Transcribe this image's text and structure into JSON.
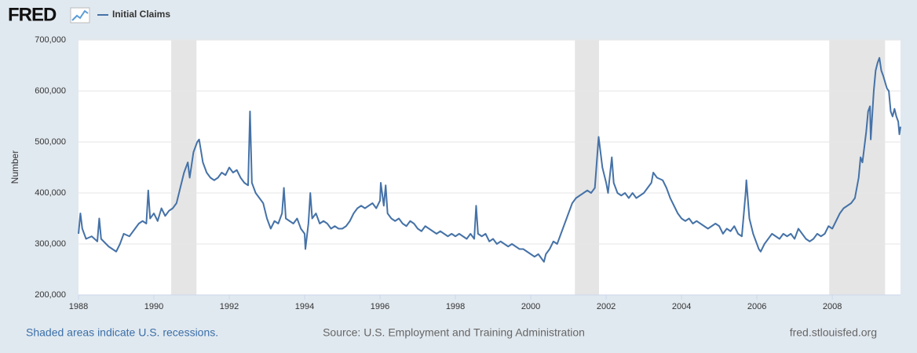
{
  "logo": "FRED",
  "footer": {
    "note": "Shaded areas indicate U.S. recessions.",
    "source": "Source: U.S. Employment and Training Administration",
    "site": "fred.stlouisfed.org"
  },
  "chart_data": {
    "type": "line",
    "ylabel": "Number",
    "xlim": [
      1988,
      2009.81
    ],
    "xticks": [
      1988,
      1990,
      1992,
      1994,
      1996,
      1998,
      2000,
      2002,
      2004,
      2006,
      2008
    ],
    "ylim": [
      200000,
      700000
    ],
    "yticks": [
      {
        "value": 200000,
        "label": "200,000"
      },
      {
        "value": 300000,
        "label": "300,000"
      },
      {
        "value": 400000,
        "label": "400,000"
      },
      {
        "value": 500000,
        "label": "500,000"
      },
      {
        "value": 600000,
        "label": "600,000"
      },
      {
        "value": 700000,
        "label": "700,000"
      }
    ],
    "grid": true,
    "legend": "top-left",
    "recession_color": "#e5e5e5",
    "recessions": [
      [
        1990.46,
        1991.13
      ],
      [
        2001.17,
        2001.81
      ],
      [
        2007.92,
        2009.4
      ]
    ],
    "series": [
      {
        "name": "Initial Claims",
        "color": "#4572a7",
        "x": [
          1988.0,
          1988.05,
          1988.1,
          1988.2,
          1988.35,
          1988.5,
          1988.55,
          1988.6,
          1988.8,
          1988.9,
          1989.0,
          1989.1,
          1989.2,
          1989.35,
          1989.5,
          1989.6,
          1989.7,
          1989.8,
          1989.85,
          1989.9,
          1990.0,
          1990.1,
          1990.2,
          1990.3,
          1990.4,
          1990.5,
          1990.6,
          1990.7,
          1990.8,
          1990.9,
          1990.95,
          1991.05,
          1991.15,
          1991.2,
          1991.3,
          1991.4,
          1991.5,
          1991.6,
          1991.7,
          1991.8,
          1991.9,
          1992.0,
          1992.1,
          1992.2,
          1992.3,
          1992.4,
          1992.5,
          1992.55,
          1992.6,
          1992.7,
          1992.8,
          1992.9,
          1993.0,
          1993.1,
          1993.2,
          1993.3,
          1993.4,
          1993.45,
          1993.5,
          1993.6,
          1993.7,
          1993.8,
          1993.9,
          1994.0,
          1994.02,
          1994.1,
          1994.15,
          1994.2,
          1994.3,
          1994.4,
          1994.5,
          1994.6,
          1994.7,
          1994.8,
          1994.9,
          1995.0,
          1995.1,
          1995.2,
          1995.3,
          1995.4,
          1995.5,
          1995.6,
          1995.7,
          1995.8,
          1995.9,
          1996.0,
          1996.02,
          1996.1,
          1996.15,
          1996.2,
          1996.3,
          1996.4,
          1996.5,
          1996.6,
          1996.7,
          1996.8,
          1996.9,
          1997.0,
          1997.1,
          1997.2,
          1997.3,
          1997.4,
          1997.5,
          1997.6,
          1997.7,
          1997.8,
          1997.9,
          1998.0,
          1998.1,
          1998.2,
          1998.3,
          1998.4,
          1998.5,
          1998.55,
          1998.6,
          1998.7,
          1998.8,
          1998.9,
          1999.0,
          1999.1,
          1999.2,
          1999.3,
          1999.4,
          1999.5,
          1999.6,
          1999.7,
          1999.8,
          1999.9,
          2000.0,
          2000.1,
          2000.2,
          2000.3,
          2000.35,
          2000.4,
          2000.5,
          2000.6,
          2000.7,
          2000.8,
          2000.9,
          2001.0,
          2001.1,
          2001.2,
          2001.3,
          2001.4,
          2001.5,
          2001.6,
          2001.7,
          2001.75,
          2001.8,
          2001.85,
          2001.9,
          2002.0,
          2002.05,
          2002.15,
          2002.2,
          2002.3,
          2002.4,
          2002.5,
          2002.6,
          2002.7,
          2002.8,
          2002.9,
          2003.0,
          2003.1,
          2003.2,
          2003.25,
          2003.35,
          2003.5,
          2003.6,
          2003.7,
          2003.8,
          2003.9,
          2004.0,
          2004.1,
          2004.2,
          2004.3,
          2004.4,
          2004.5,
          2004.6,
          2004.7,
          2004.8,
          2004.9,
          2005.0,
          2005.1,
          2005.2,
          2005.3,
          2005.4,
          2005.5,
          2005.6,
          2005.7,
          2005.72,
          2005.8,
          2005.9,
          2006.0,
          2006.05,
          2006.1,
          2006.2,
          2006.3,
          2006.4,
          2006.5,
          2006.6,
          2006.7,
          2006.8,
          2006.9,
          2007.0,
          2007.1,
          2007.2,
          2007.3,
          2007.4,
          2007.5,
          2007.6,
          2007.7,
          2007.8,
          2007.9,
          2008.0,
          2008.1,
          2008.2,
          2008.3,
          2008.4,
          2008.5,
          2008.6,
          2008.7,
          2008.75,
          2008.8,
          2008.9,
          2008.95,
          2009.0,
          2009.02,
          2009.1,
          2009.15,
          2009.2,
          2009.25,
          2009.3,
          2009.35,
          2009.45,
          2009.5,
          2009.55,
          2009.6,
          2009.65,
          2009.7,
          2009.75,
          2009.78,
          2009.81
        ],
        "values": [
          320000,
          360000,
          330000,
          310000,
          315000,
          305000,
          350000,
          310000,
          295000,
          290000,
          285000,
          300000,
          320000,
          315000,
          330000,
          340000,
          345000,
          340000,
          405000,
          350000,
          360000,
          345000,
          370000,
          355000,
          365000,
          370000,
          380000,
          410000,
          440000,
          460000,
          430000,
          480000,
          500000,
          505000,
          460000,
          440000,
          430000,
          425000,
          430000,
          440000,
          435000,
          450000,
          440000,
          445000,
          430000,
          420000,
          415000,
          560000,
          420000,
          400000,
          390000,
          380000,
          350000,
          330000,
          345000,
          340000,
          360000,
          410000,
          350000,
          345000,
          340000,
          350000,
          330000,
          320000,
          290000,
          340000,
          400000,
          350000,
          360000,
          340000,
          345000,
          340000,
          330000,
          335000,
          330000,
          330000,
          335000,
          345000,
          360000,
          370000,
          375000,
          370000,
          375000,
          380000,
          370000,
          385000,
          420000,
          375000,
          415000,
          360000,
          350000,
          345000,
          350000,
          340000,
          335000,
          345000,
          340000,
          330000,
          325000,
          335000,
          330000,
          325000,
          320000,
          325000,
          320000,
          315000,
          320000,
          315000,
          320000,
          315000,
          310000,
          320000,
          310000,
          375000,
          320000,
          315000,
          320000,
          305000,
          310000,
          300000,
          305000,
          300000,
          295000,
          300000,
          295000,
          290000,
          290000,
          285000,
          280000,
          275000,
          280000,
          270000,
          265000,
          280000,
          290000,
          305000,
          300000,
          320000,
          340000,
          360000,
          380000,
          390000,
          395000,
          400000,
          405000,
          400000,
          410000,
          460000,
          510000,
          480000,
          450000,
          420000,
          400000,
          470000,
          420000,
          400000,
          395000,
          400000,
          390000,
          400000,
          390000,
          395000,
          400000,
          410000,
          420000,
          440000,
          430000,
          425000,
          410000,
          390000,
          375000,
          360000,
          350000,
          345000,
          350000,
          340000,
          345000,
          340000,
          335000,
          330000,
          335000,
          340000,
          335000,
          320000,
          330000,
          325000,
          335000,
          320000,
          315000,
          400000,
          425000,
          350000,
          320000,
          300000,
          290000,
          285000,
          300000,
          310000,
          320000,
          315000,
          310000,
          320000,
          315000,
          320000,
          310000,
          330000,
          320000,
          310000,
          305000,
          310000,
          320000,
          315000,
          320000,
          335000,
          330000,
          345000,
          360000,
          370000,
          375000,
          380000,
          390000,
          430000,
          470000,
          460000,
          520000,
          560000,
          570000,
          505000,
          600000,
          640000,
          655000,
          665000,
          640000,
          630000,
          605000,
          600000,
          560000,
          550000,
          565000,
          550000,
          540000,
          515000,
          530000
        ]
      }
    ]
  }
}
